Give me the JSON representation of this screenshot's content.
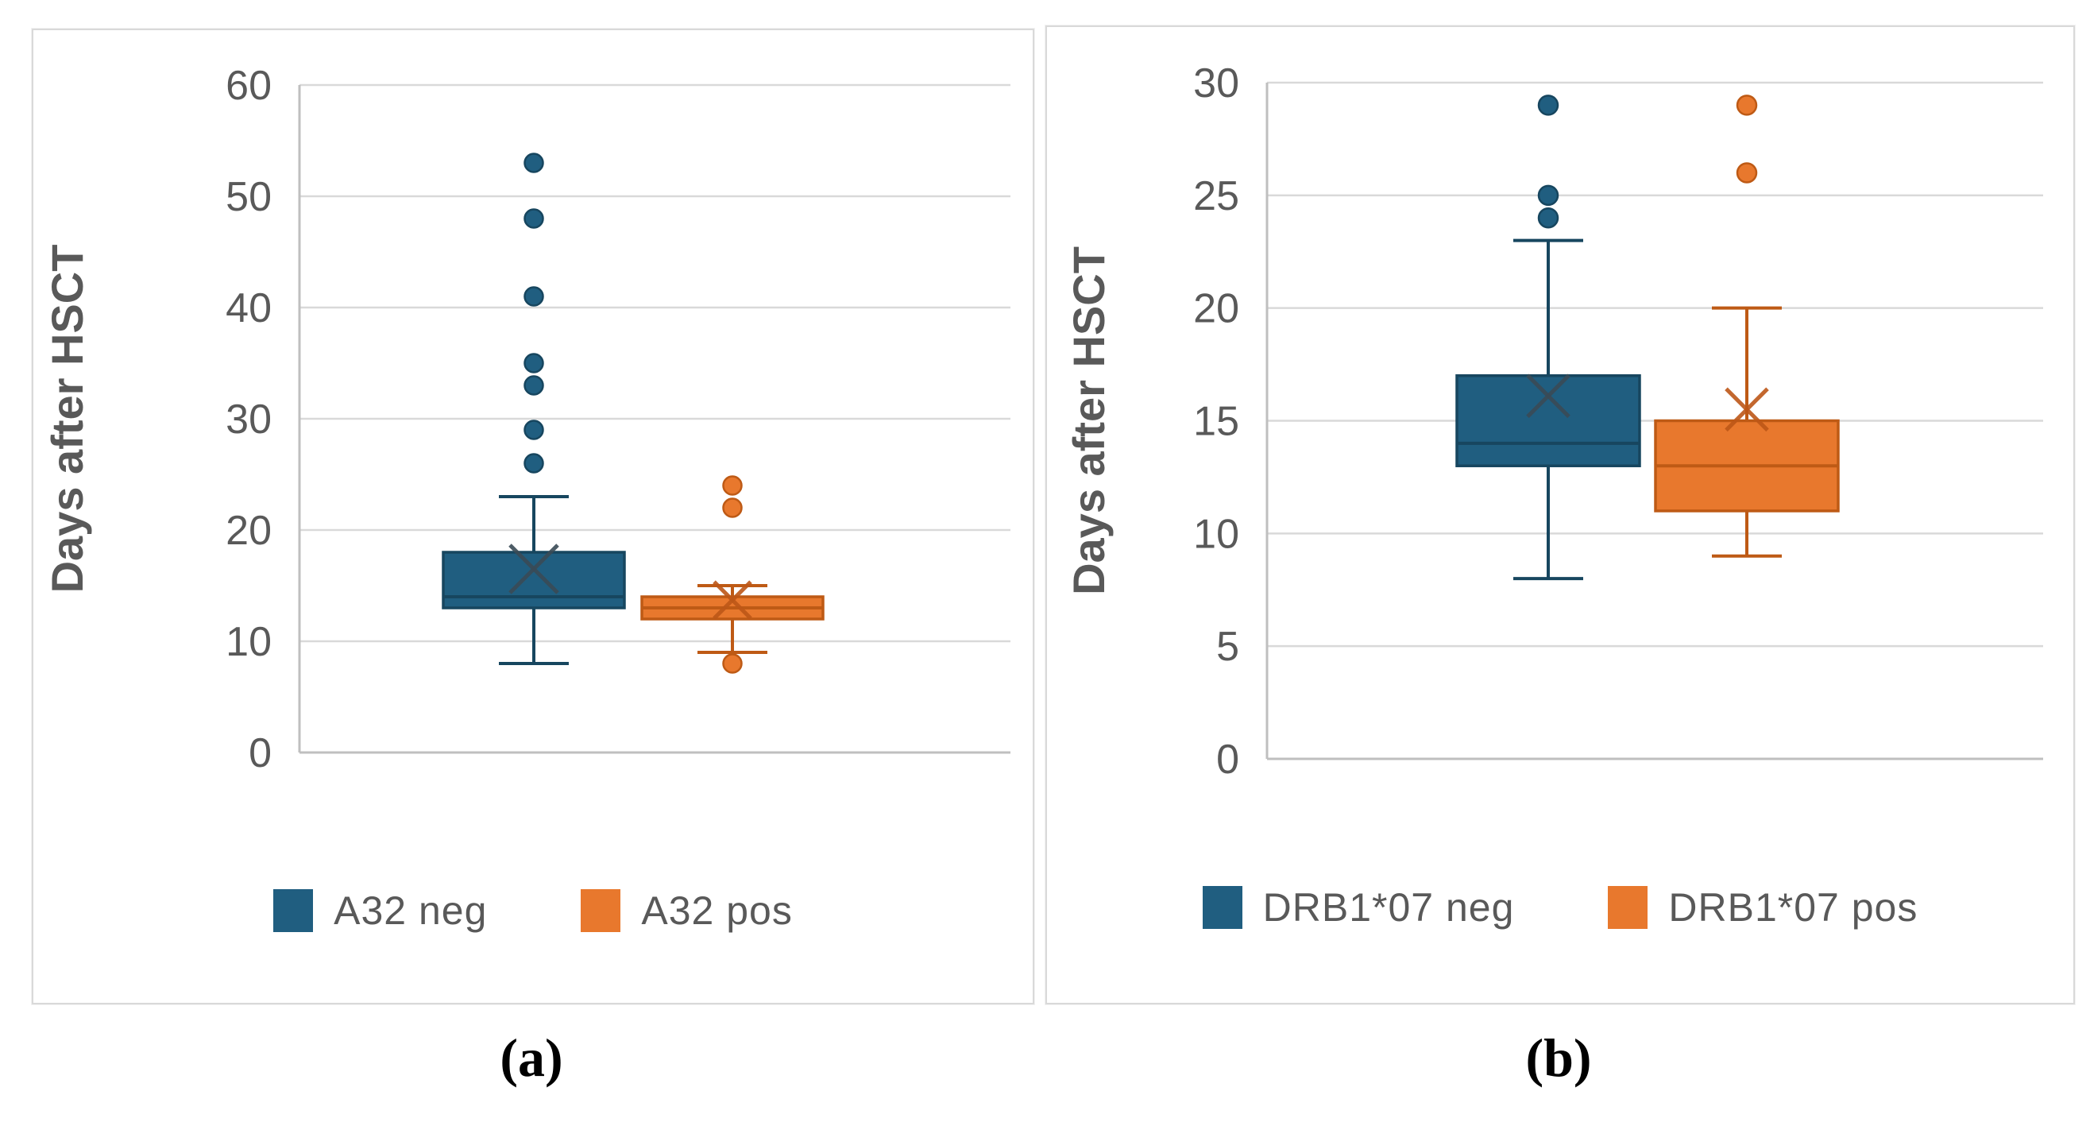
{
  "figure": {
    "caption_a": "(a)",
    "caption_b": "(b)"
  },
  "colors": {
    "blue": "#205E80",
    "blue_border": "#17465F",
    "orange": "#E8782D",
    "orange_border": "#BE5A15",
    "mean_blue": "#3A4A55",
    "mean_orange": "#BC5717",
    "grid": "#D9D9D9",
    "axis": "#BFBFBF",
    "text": "#595959",
    "panel_border": "#D9D9D9",
    "caption": "#000000"
  },
  "chart_data": [
    {
      "type": "boxplot",
      "panel": "a",
      "title": "",
      "ylabel": "Days after HSCT",
      "xlabel": "",
      "ylim": [
        0,
        60
      ],
      "yticks": [
        0,
        10,
        20,
        30,
        40,
        50,
        60
      ],
      "grid": true,
      "legend_position": "bottom",
      "series": [
        {
          "name": "A32 neg",
          "color": "blue",
          "whisker_low": 8,
          "q1": 13,
          "median": 14,
          "q3": 18,
          "whisker_high": 23,
          "mean": 16.5,
          "outliers_high": [
            26,
            29,
            33,
            35,
            41,
            48,
            53
          ],
          "outliers_low": []
        },
        {
          "name": "A32 pos",
          "color": "orange",
          "whisker_low": 9,
          "q1": 12,
          "median": 13,
          "q3": 14,
          "whisker_high": 15,
          "mean": 13.7,
          "outliers_high": [
            22,
            24
          ],
          "outliers_low": [
            8
          ]
        }
      ]
    },
    {
      "type": "boxplot",
      "panel": "b",
      "title": "",
      "ylabel": "Days after HSCT",
      "xlabel": "",
      "ylim": [
        0,
        30
      ],
      "yticks": [
        0,
        5,
        10,
        15,
        20,
        25,
        30
      ],
      "grid": true,
      "legend_position": "bottom",
      "series": [
        {
          "name": "DRB1*07 neg",
          "color": "blue",
          "whisker_low": 8,
          "q1": 13,
          "median": 14,
          "q3": 17,
          "whisker_high": 23,
          "mean": 16.1,
          "outliers_high": [
            24,
            25,
            29
          ],
          "outliers_low": []
        },
        {
          "name": "DRB1*07 pos",
          "color": "orange",
          "whisker_low": 9,
          "q1": 11,
          "median": 13,
          "q3": 15,
          "whisker_high": 20,
          "mean": 15.5,
          "outliers_high": [
            26,
            29
          ],
          "outliers_low": []
        }
      ]
    }
  ]
}
